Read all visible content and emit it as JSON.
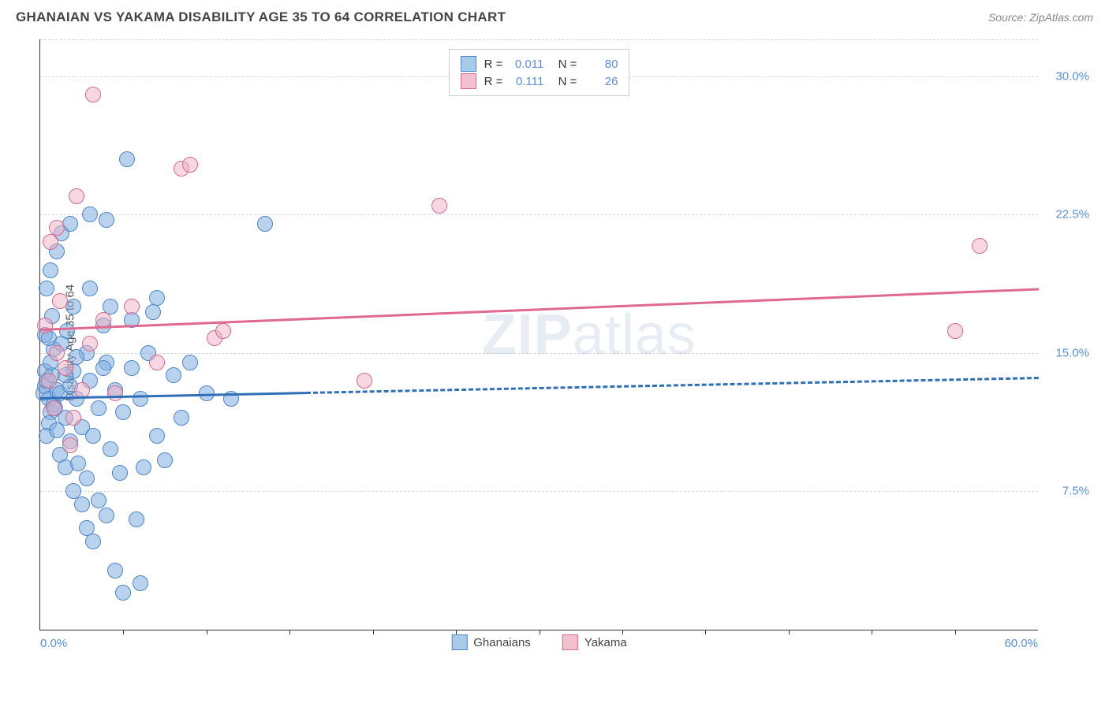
{
  "title": "GHANAIAN VS YAKAMA DISABILITY AGE 35 TO 64 CORRELATION CHART",
  "source": "Source: ZipAtlas.com",
  "y_axis_title": "Disability Age 35 to 64",
  "watermark": "ZIPatlas",
  "chart": {
    "type": "scatter",
    "xlim": [
      0,
      60
    ],
    "ylim": [
      0,
      32
    ],
    "x_tick_step": 5,
    "x_start_label": "0.0%",
    "x_end_label": "60.0%",
    "y_grid_values": [
      7.5,
      15.0,
      22.5,
      30.0
    ],
    "y_grid_labels": [
      "7.5%",
      "15.0%",
      "22.5%",
      "30.0%"
    ],
    "background_color": "#ffffff",
    "grid_color": "#d5d5d5",
    "axis_color": "#333333",
    "tick_label_color": "#5a8fd6",
    "marker_radius": 10,
    "marker_stroke_width": 1,
    "series": [
      {
        "name": "Ghanaians",
        "fill": "rgba(128,175,226,0.55)",
        "stroke": "#4f86c6",
        "swatch_fill": "#a9cbea",
        "swatch_stroke": "#4f86c6",
        "R": "0.011",
        "N": "80",
        "trend": {
          "y_start": 12.6,
          "y_end": 13.7,
          "solid_until_x": 16,
          "color": "#2f6fb7",
          "width": 3
        },
        "points": [
          [
            0.2,
            12.8
          ],
          [
            0.3,
            13.2
          ],
          [
            0.5,
            12.5
          ],
          [
            0.6,
            11.8
          ],
          [
            0.4,
            13.5
          ],
          [
            0.8,
            12.2
          ],
          [
            0.3,
            14.0
          ],
          [
            0.7,
            13.8
          ],
          [
            0.5,
            11.2
          ],
          [
            0.9,
            12.0
          ],
          [
            1.0,
            13.0
          ],
          [
            0.4,
            10.5
          ],
          [
            0.6,
            14.5
          ],
          [
            1.2,
            12.8
          ],
          [
            0.8,
            15.2
          ],
          [
            1.5,
            11.5
          ],
          [
            0.3,
            16.0
          ],
          [
            1.8,
            13.2
          ],
          [
            1.0,
            10.8
          ],
          [
            2.0,
            14.0
          ],
          [
            0.5,
            15.8
          ],
          [
            1.3,
            15.5
          ],
          [
            2.2,
            12.5
          ],
          [
            1.6,
            16.2
          ],
          [
            0.7,
            17.0
          ],
          [
            2.5,
            11.0
          ],
          [
            1.2,
            9.5
          ],
          [
            3.0,
            13.5
          ],
          [
            1.8,
            10.2
          ],
          [
            2.8,
            15.0
          ],
          [
            0.4,
            18.5
          ],
          [
            3.5,
            12.0
          ],
          [
            2.0,
            17.5
          ],
          [
            1.5,
            8.8
          ],
          [
            4.0,
            14.5
          ],
          [
            2.3,
            9.0
          ],
          [
            0.6,
            19.5
          ],
          [
            3.2,
            10.5
          ],
          [
            4.5,
            13.0
          ],
          [
            1.0,
            20.5
          ],
          [
            2.8,
            8.2
          ],
          [
            5.0,
            11.8
          ],
          [
            3.8,
            16.5
          ],
          [
            1.3,
            21.5
          ],
          [
            5.5,
            14.2
          ],
          [
            2.0,
            7.5
          ],
          [
            4.2,
            9.8
          ],
          [
            6.0,
            12.5
          ],
          [
            1.8,
            22.0
          ],
          [
            3.0,
            18.5
          ],
          [
            6.5,
            15.0
          ],
          [
            2.5,
            6.8
          ],
          [
            7.0,
            10.5
          ],
          [
            4.8,
            8.5
          ],
          [
            3.5,
            7.0
          ],
          [
            8.0,
            13.8
          ],
          [
            5.2,
            25.5
          ],
          [
            2.8,
            5.5
          ],
          [
            6.2,
            8.8
          ],
          [
            4.0,
            6.2
          ],
          [
            9.0,
            14.5
          ],
          [
            3.2,
            4.8
          ],
          [
            7.5,
            9.2
          ],
          [
            5.8,
            6.0
          ],
          [
            13.5,
            22.0
          ],
          [
            4.5,
            3.2
          ],
          [
            8.5,
            11.5
          ],
          [
            6.0,
            2.5
          ],
          [
            5.0,
            2.0
          ],
          [
            10.0,
            12.8
          ],
          [
            11.5,
            12.5
          ],
          [
            7.0,
            18.0
          ],
          [
            4.2,
            17.5
          ],
          [
            3.0,
            22.5
          ],
          [
            4.0,
            22.2
          ],
          [
            5.5,
            16.8
          ],
          [
            6.8,
            17.2
          ],
          [
            2.2,
            14.8
          ],
          [
            1.5,
            13.8
          ],
          [
            3.8,
            14.2
          ]
        ]
      },
      {
        "name": "Yakama",
        "fill": "rgba(240,175,195,0.50)",
        "stroke": "#d46a8e",
        "swatch_fill": "#f3c0d0",
        "swatch_stroke": "#d46a8e",
        "R": "0.111",
        "N": "26",
        "trend": {
          "y_start": 16.3,
          "y_end": 18.5,
          "solid_until_x": 60,
          "color": "#e06992",
          "width": 3
        },
        "points": [
          [
            0.5,
            13.5
          ],
          [
            1.0,
            15.0
          ],
          [
            0.8,
            12.0
          ],
          [
            1.5,
            14.2
          ],
          [
            0.3,
            16.5
          ],
          [
            2.0,
            11.5
          ],
          [
            1.2,
            17.8
          ],
          [
            2.5,
            13.0
          ],
          [
            0.6,
            21.0
          ],
          [
            3.0,
            15.5
          ],
          [
            1.8,
            10.0
          ],
          [
            3.8,
            16.8
          ],
          [
            2.2,
            23.5
          ],
          [
            4.5,
            12.8
          ],
          [
            1.0,
            21.8
          ],
          [
            5.5,
            17.5
          ],
          [
            3.2,
            29.0
          ],
          [
            7.0,
            14.5
          ],
          [
            8.5,
            25.0
          ],
          [
            9.0,
            25.2
          ],
          [
            10.5,
            15.8
          ],
          [
            11.0,
            16.2
          ],
          [
            19.5,
            13.5
          ],
          [
            24.0,
            23.0
          ],
          [
            55.0,
            16.2
          ],
          [
            56.5,
            20.8
          ]
        ]
      }
    ]
  },
  "bottom_legend": [
    {
      "label": "Ghanaians",
      "fill": "#a9cbea",
      "stroke": "#4f86c6"
    },
    {
      "label": "Yakama",
      "fill": "#f3c0d0",
      "stroke": "#d46a8e"
    }
  ]
}
